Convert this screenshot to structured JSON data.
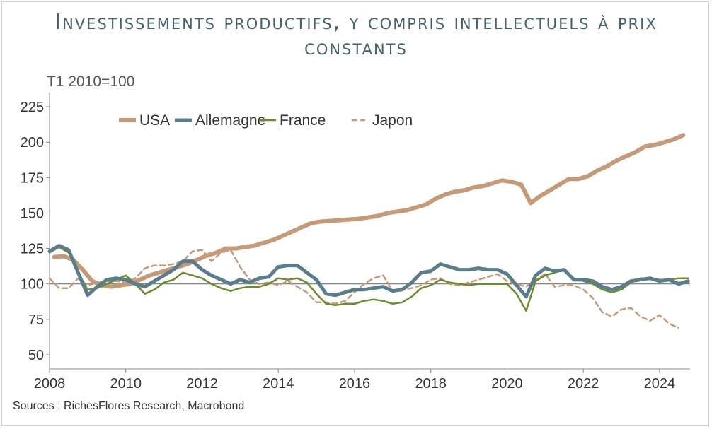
{
  "chart_data": {
    "type": "line",
    "title": "Investissements productifs, y compris intellectuels à prix constants",
    "ylabel": "T1 2010=100",
    "source": "Sources : RichesFlores Research, Macrobond",
    "xlim": [
      2008,
      2024.8
    ],
    "ylim": [
      40,
      235
    ],
    "x_ticks": [
      "2008",
      "2010",
      "2012",
      "2014",
      "2016",
      "2018",
      "2020",
      "2022",
      "2024"
    ],
    "y_ticks": [
      "225",
      "200",
      "175",
      "150",
      "125",
      "100",
      "75",
      "50"
    ],
    "reference_line": 100,
    "legend_position": "top-left",
    "series": [
      {
        "name": "USA",
        "color": "#c49a79",
        "style": "solid",
        "width": 6,
        "points": [
          [
            2008.12,
            119
          ],
          [
            2008.37,
            119.5
          ],
          [
            2008.62,
            117
          ],
          [
            2008.87,
            110
          ],
          [
            2009.12,
            102
          ],
          [
            2009.37,
            99
          ],
          [
            2009.62,
            98
          ],
          [
            2009.87,
            99
          ],
          [
            2010.12,
            100
          ],
          [
            2010.37,
            103
          ],
          [
            2010.62,
            106
          ],
          [
            2010.87,
            108
          ],
          [
            2011.12,
            110
          ],
          [
            2011.37,
            112
          ],
          [
            2011.62,
            114
          ],
          [
            2011.87,
            117
          ],
          [
            2012.12,
            120
          ],
          [
            2012.37,
            122
          ],
          [
            2012.62,
            125
          ],
          [
            2012.87,
            125
          ],
          [
            2013.12,
            126
          ],
          [
            2013.37,
            127
          ],
          [
            2013.62,
            129
          ],
          [
            2013.87,
            131
          ],
          [
            2014.12,
            134
          ],
          [
            2014.37,
            137
          ],
          [
            2014.62,
            140
          ],
          [
            2014.87,
            143
          ],
          [
            2015.12,
            144
          ],
          [
            2015.37,
            144.5
          ],
          [
            2015.62,
            145
          ],
          [
            2015.87,
            145.5
          ],
          [
            2016.12,
            146
          ],
          [
            2016.37,
            147
          ],
          [
            2016.62,
            148
          ],
          [
            2016.87,
            150
          ],
          [
            2017.12,
            151
          ],
          [
            2017.37,
            152
          ],
          [
            2017.62,
            154
          ],
          [
            2017.87,
            156
          ],
          [
            2018.12,
            160
          ],
          [
            2018.37,
            163
          ],
          [
            2018.62,
            165
          ],
          [
            2018.87,
            166
          ],
          [
            2019.12,
            168
          ],
          [
            2019.37,
            169
          ],
          [
            2019.62,
            171
          ],
          [
            2019.87,
            173
          ],
          [
            2020.12,
            172
          ],
          [
            2020.37,
            170
          ],
          [
            2020.62,
            157
          ],
          [
            2020.87,
            162
          ],
          [
            2021.12,
            166
          ],
          [
            2021.37,
            170
          ],
          [
            2021.62,
            174
          ],
          [
            2021.87,
            174
          ],
          [
            2022.12,
            176
          ],
          [
            2022.37,
            180
          ],
          [
            2022.62,
            183
          ],
          [
            2022.87,
            187
          ],
          [
            2023.12,
            190
          ],
          [
            2023.37,
            193
          ],
          [
            2023.62,
            197
          ],
          [
            2023.87,
            198
          ],
          [
            2024.12,
            200
          ],
          [
            2024.37,
            202
          ],
          [
            2024.62,
            205
          ]
        ]
      },
      {
        "name": "Allemagne",
        "color": "#5a7d8c",
        "style": "solid",
        "width": 5,
        "points": [
          [
            2008.0,
            123
          ],
          [
            2008.25,
            127
          ],
          [
            2008.5,
            124
          ],
          [
            2008.75,
            108
          ],
          [
            2009.0,
            92
          ],
          [
            2009.25,
            98
          ],
          [
            2009.5,
            103
          ],
          [
            2009.75,
            104
          ],
          [
            2010.0,
            103
          ],
          [
            2010.25,
            100
          ],
          [
            2010.5,
            98
          ],
          [
            2010.75,
            102
          ],
          [
            2011.0,
            106
          ],
          [
            2011.25,
            110
          ],
          [
            2011.5,
            116
          ],
          [
            2011.75,
            116
          ],
          [
            2012.0,
            110
          ],
          [
            2012.25,
            106
          ],
          [
            2012.5,
            103
          ],
          [
            2012.75,
            100
          ],
          [
            2013.0,
            103
          ],
          [
            2013.25,
            101
          ],
          [
            2013.5,
            104
          ],
          [
            2013.75,
            105
          ],
          [
            2014.0,
            112
          ],
          [
            2014.25,
            113
          ],
          [
            2014.5,
            113
          ],
          [
            2014.75,
            108
          ],
          [
            2015.0,
            103
          ],
          [
            2015.25,
            93
          ],
          [
            2015.5,
            92
          ],
          [
            2015.75,
            94
          ],
          [
            2016.0,
            96
          ],
          [
            2016.25,
            96
          ],
          [
            2016.5,
            97
          ],
          [
            2016.75,
            98
          ],
          [
            2017.0,
            95
          ],
          [
            2017.25,
            96
          ],
          [
            2017.5,
            101
          ],
          [
            2017.75,
            108
          ],
          [
            2018.0,
            109
          ],
          [
            2018.25,
            114
          ],
          [
            2018.5,
            112
          ],
          [
            2018.75,
            110
          ],
          [
            2019.0,
            110
          ],
          [
            2019.25,
            111
          ],
          [
            2019.5,
            110
          ],
          [
            2019.75,
            110
          ],
          [
            2020.0,
            107
          ],
          [
            2020.25,
            99
          ],
          [
            2020.5,
            91
          ],
          [
            2020.75,
            106
          ],
          [
            2021.0,
            111
          ],
          [
            2021.25,
            109
          ],
          [
            2021.5,
            110
          ],
          [
            2021.75,
            103
          ],
          [
            2022.0,
            103
          ],
          [
            2022.25,
            102
          ],
          [
            2022.5,
            98
          ],
          [
            2022.75,
            96
          ],
          [
            2023.0,
            98
          ],
          [
            2023.25,
            102
          ],
          [
            2023.5,
            103
          ],
          [
            2023.75,
            104
          ],
          [
            2024.0,
            102
          ],
          [
            2024.25,
            103
          ],
          [
            2024.5,
            100
          ],
          [
            2024.75,
            102
          ]
        ]
      },
      {
        "name": "France",
        "color": "#6b8c2a",
        "style": "solid",
        "width": 2.5,
        "points": [
          [
            2008.0,
            122
          ],
          [
            2008.25,
            126
          ],
          [
            2008.5,
            122
          ],
          [
            2008.75,
            108
          ],
          [
            2009.0,
            96
          ],
          [
            2009.25,
            97
          ],
          [
            2009.5,
            100
          ],
          [
            2009.75,
            103
          ],
          [
            2010.0,
            106
          ],
          [
            2010.25,
            100
          ],
          [
            2010.5,
            93
          ],
          [
            2010.75,
            96
          ],
          [
            2011.0,
            101
          ],
          [
            2011.25,
            103
          ],
          [
            2011.5,
            108
          ],
          [
            2011.75,
            106
          ],
          [
            2012.0,
            104
          ],
          [
            2012.25,
            100
          ],
          [
            2012.5,
            97
          ],
          [
            2012.75,
            95
          ],
          [
            2013.0,
            97
          ],
          [
            2013.25,
            98
          ],
          [
            2013.5,
            98
          ],
          [
            2013.75,
            100
          ],
          [
            2014.0,
            104
          ],
          [
            2014.25,
            103
          ],
          [
            2014.5,
            104
          ],
          [
            2014.75,
            101
          ],
          [
            2015.0,
            93
          ],
          [
            2015.25,
            86
          ],
          [
            2015.5,
            85
          ],
          [
            2015.75,
            86
          ],
          [
            2016.0,
            86
          ],
          [
            2016.25,
            88
          ],
          [
            2016.5,
            89
          ],
          [
            2016.75,
            88
          ],
          [
            2017.0,
            86
          ],
          [
            2017.25,
            87
          ],
          [
            2017.5,
            91
          ],
          [
            2017.75,
            97
          ],
          [
            2018.0,
            99
          ],
          [
            2018.25,
            103
          ],
          [
            2018.5,
            101
          ],
          [
            2018.75,
            100
          ],
          [
            2019.0,
            99
          ],
          [
            2019.25,
            100
          ],
          [
            2019.5,
            100
          ],
          [
            2019.75,
            100
          ],
          [
            2020.0,
            100
          ],
          [
            2020.25,
            93
          ],
          [
            2020.5,
            81
          ],
          [
            2020.75,
            102
          ],
          [
            2021.0,
            106
          ],
          [
            2021.25,
            108
          ],
          [
            2021.5,
            110
          ],
          [
            2021.75,
            104
          ],
          [
            2022.0,
            102
          ],
          [
            2022.25,
            100
          ],
          [
            2022.5,
            96
          ],
          [
            2022.75,
            94
          ],
          [
            2023.0,
            96
          ],
          [
            2023.25,
            101
          ],
          [
            2023.5,
            104
          ],
          [
            2023.75,
            104
          ],
          [
            2024.0,
            103
          ],
          [
            2024.25,
            103
          ],
          [
            2024.5,
            104
          ],
          [
            2024.75,
            104
          ]
        ]
      },
      {
        "name": "Japon",
        "color": "#c49a79",
        "style": "dashed",
        "width": 2.5,
        "points": [
          [
            2008.0,
            104
          ],
          [
            2008.25,
            97
          ],
          [
            2008.5,
            97
          ],
          [
            2008.75,
            104
          ],
          [
            2009.0,
            99
          ],
          [
            2009.25,
            101
          ],
          [
            2009.5,
            102
          ],
          [
            2009.75,
            102
          ],
          [
            2010.0,
            101
          ],
          [
            2010.25,
            104
          ],
          [
            2010.5,
            111
          ],
          [
            2010.75,
            113
          ],
          [
            2011.0,
            113
          ],
          [
            2011.25,
            114
          ],
          [
            2011.5,
            116
          ],
          [
            2011.75,
            123
          ],
          [
            2012.0,
            124
          ],
          [
            2012.25,
            116
          ],
          [
            2012.5,
            122
          ],
          [
            2012.75,
            124
          ],
          [
            2013.0,
            112
          ],
          [
            2013.25,
            103
          ],
          [
            2013.5,
            100
          ],
          [
            2013.75,
            101
          ],
          [
            2014.0,
            99
          ],
          [
            2014.25,
            102
          ],
          [
            2014.5,
            98
          ],
          [
            2014.75,
            94
          ],
          [
            2015.0,
            87
          ],
          [
            2015.25,
            87
          ],
          [
            2015.5,
            86
          ],
          [
            2015.75,
            88
          ],
          [
            2016.0,
            94
          ],
          [
            2016.25,
            100
          ],
          [
            2016.5,
            104
          ],
          [
            2016.75,
            106
          ],
          [
            2017.0,
            95
          ],
          [
            2017.25,
            96
          ],
          [
            2017.5,
            97
          ],
          [
            2017.75,
            99
          ],
          [
            2018.0,
            103
          ],
          [
            2018.25,
            104
          ],
          [
            2018.5,
            100
          ],
          [
            2018.75,
            99
          ],
          [
            2019.0,
            101
          ],
          [
            2019.25,
            103
          ],
          [
            2019.5,
            105
          ],
          [
            2019.75,
            107
          ],
          [
            2020.0,
            102
          ],
          [
            2020.25,
            100
          ],
          [
            2020.5,
            98
          ],
          [
            2020.75,
            103
          ],
          [
            2021.0,
            107
          ],
          [
            2021.25,
            98
          ],
          [
            2021.5,
            99
          ],
          [
            2021.75,
            99
          ],
          [
            2022.0,
            96
          ],
          [
            2022.25,
            90
          ],
          [
            2022.5,
            80
          ],
          [
            2022.75,
            77
          ],
          [
            2023.0,
            82
          ],
          [
            2023.25,
            83
          ],
          [
            2023.5,
            77
          ],
          [
            2023.75,
            74
          ],
          [
            2024.0,
            78
          ],
          [
            2024.25,
            72
          ],
          [
            2024.5,
            69
          ]
        ]
      }
    ]
  }
}
